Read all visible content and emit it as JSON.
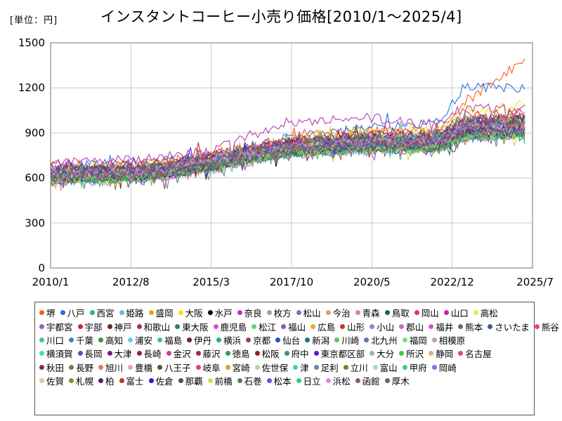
{
  "header": {
    "unit": "[単位：円]",
    "title": "インスタントコーヒー小売り価格[2010/1～2025/4]"
  },
  "chart_data": {
    "type": "line",
    "title": "インスタントコーヒー小売り価格[2010/1～2025/4]",
    "unit_label": "[単位：円]",
    "ylim": [
      0,
      1500
    ],
    "yticks": [
      "0",
      "300",
      "600",
      "900",
      "1200",
      "1500"
    ],
    "xticks": [
      "2010/1",
      "2012/8",
      "2015/3",
      "2017/10",
      "2020/5",
      "2022/12",
      "2025/7"
    ],
    "xrange": [
      "2010/1",
      "2025/7"
    ],
    "grid": true,
    "legend_position": "bottom",
    "series": [
      {
        "name": "堺",
        "color": "#ff5722",
        "levels": [
          700,
          690,
          760,
          860,
          920,
          900,
          1110,
          1380
        ]
      },
      {
        "name": "八戸",
        "color": "#1e6fe8",
        "levels": [
          680,
          700,
          740,
          870,
          930,
          980,
          1210,
          1200
        ]
      },
      {
        "name": "西宮",
        "color": "#2db38a",
        "levels": [
          650,
          640,
          720,
          830,
          860,
          880,
          990,
          1010
        ]
      },
      {
        "name": "姫路",
        "color": "#5bbfdf",
        "levels": [
          640,
          660,
          720,
          820,
          880,
          900,
          1000,
          980
        ]
      },
      {
        "name": "盛岡",
        "color": "#f0a500",
        "levels": [
          620,
          650,
          700,
          800,
          850,
          870,
          960,
          990
        ]
      },
      {
        "name": "大阪",
        "color": "#f2e600",
        "levels": [
          660,
          680,
          750,
          860,
          900,
          920,
          1050,
          1080
        ]
      },
      {
        "name": "水戸",
        "color": "#000000",
        "levels": [
          580,
          610,
          680,
          780,
          830,
          830,
          900,
          1000
        ]
      },
      {
        "name": "奈良",
        "color": "#b338b3",
        "levels": [
          700,
          720,
          780,
          980,
          1000,
          950,
          1080,
          1060
        ]
      },
      {
        "name": "枚方",
        "color": "#a0a0a0",
        "levels": [
          600,
          620,
          690,
          790,
          820,
          820,
          920,
          940
        ]
      },
      {
        "name": "松山",
        "color": "#8a6ad0",
        "levels": [
          620,
          630,
          690,
          780,
          820,
          810,
          900,
          900
        ]
      },
      {
        "name": "今治",
        "color": "#d9a066",
        "levels": [
          640,
          650,
          710,
          820,
          850,
          860,
          960,
          950
        ]
      },
      {
        "name": "青森",
        "color": "#e67ac0",
        "levels": [
          610,
          640,
          720,
          830,
          840,
          850,
          940,
          920
        ]
      },
      {
        "name": "鳥取",
        "color": "#1a6b3a",
        "levels": [
          600,
          610,
          680,
          770,
          800,
          800,
          880,
          900
        ]
      },
      {
        "name": "岡山",
        "color": "#d63b5e",
        "levels": [
          650,
          660,
          730,
          840,
          880,
          890,
          980,
          1000
        ]
      },
      {
        "name": "山口",
        "color": "#cc22aa",
        "levels": [
          620,
          650,
          700,
          800,
          820,
          830,
          920,
          930
        ]
      },
      {
        "name": "高松",
        "color": "#e0ef3a",
        "levels": [
          640,
          660,
          720,
          830,
          860,
          870,
          960,
          970
        ]
      },
      {
        "name": "宇都宮",
        "color": "#9b59d0",
        "levels": [
          580,
          600,
          670,
          760,
          790,
          790,
          870,
          880
        ]
      },
      {
        "name": "宇部",
        "color": "#d6262f",
        "levels": [
          660,
          680,
          750,
          850,
          890,
          900,
          1010,
          1030
        ]
      },
      {
        "name": "神戸",
        "color": "#5a2a1a",
        "levels": [
          620,
          630,
          700,
          800,
          830,
          840,
          930,
          950
        ]
      },
      {
        "name": "和歌山",
        "color": "#b5246a",
        "levels": [
          630,
          650,
          710,
          810,
          840,
          850,
          940,
          960
        ]
      },
      {
        "name": "東大阪",
        "color": "#3a7a6a",
        "levels": [
          610,
          620,
          690,
          790,
          810,
          820,
          900,
          920
        ]
      },
      {
        "name": "鹿児島",
        "color": "#d44ee0",
        "levels": [
          600,
          630,
          700,
          790,
          820,
          830,
          910,
          930
        ]
      },
      {
        "name": "松江",
        "color": "#5ad67a",
        "levels": [
          640,
          650,
          700,
          800,
          840,
          850,
          950,
          960
        ]
      },
      {
        "name": "福山",
        "color": "#8e5ab5",
        "levels": [
          620,
          640,
          700,
          790,
          830,
          840,
          920,
          940
        ]
      },
      {
        "name": "広島",
        "color": "#f5a030",
        "levels": [
          650,
          660,
          730,
          830,
          870,
          880,
          980,
          990
        ]
      },
      {
        "name": "山形",
        "color": "#c0392b",
        "levels": [
          590,
          610,
          680,
          780,
          800,
          810,
          890,
          910
        ]
      },
      {
        "name": "小山",
        "color": "#7d8de8",
        "levels": [
          570,
          590,
          660,
          760,
          790,
          790,
          870,
          890
        ]
      },
      {
        "name": "郡山",
        "color": "#c070c0",
        "levels": [
          600,
          610,
          680,
          780,
          810,
          810,
          900,
          910
        ]
      },
      {
        "name": "福井",
        "color": "#e050c8",
        "levels": [
          620,
          640,
          700,
          800,
          830,
          840,
          930,
          940
        ]
      },
      {
        "name": "熊本",
        "color": "#606a80",
        "levels": [
          610,
          620,
          690,
          790,
          820,
          830,
          910,
          930
        ]
      },
      {
        "name": "さいたま",
        "color": "#3a5a8a",
        "levels": [
          590,
          600,
          670,
          770,
          800,
          800,
          880,
          900
        ]
      },
      {
        "name": "熊谷",
        "color": "#e8408a",
        "levels": [
          580,
          600,
          660,
          760,
          790,
          790,
          870,
          890
        ]
      },
      {
        "name": "川口",
        "color": "#40c0a0",
        "levels": [
          600,
          610,
          680,
          780,
          800,
          810,
          890,
          900
        ]
      },
      {
        "name": "千葉",
        "color": "#3f7fc0",
        "levels": [
          610,
          620,
          690,
          790,
          820,
          820,
          900,
          920
        ]
      },
      {
        "name": "高知",
        "color": "#2aa02a",
        "levels": [
          630,
          640,
          710,
          810,
          840,
          840,
          930,
          950
        ]
      },
      {
        "name": "浦安",
        "color": "#5ad0e0",
        "levels": [
          650,
          660,
          720,
          820,
          850,
          860,
          950,
          960
        ]
      },
      {
        "name": "福島",
        "color": "#50c070",
        "levels": [
          600,
          620,
          680,
          780,
          810,
          820,
          900,
          920
        ]
      },
      {
        "name": "伊丹",
        "color": "#7a1a2a",
        "levels": [
          640,
          650,
          720,
          820,
          850,
          860,
          950,
          960
        ]
      },
      {
        "name": "横浜",
        "color": "#2ab06a",
        "levels": [
          630,
          640,
          700,
          800,
          840,
          850,
          940,
          950
        ]
      },
      {
        "name": "京都",
        "color": "#a04050",
        "levels": [
          660,
          680,
          740,
          840,
          880,
          890,
          990,
          1000
        ]
      },
      {
        "name": "仙台",
        "color": "#2a50c0",
        "levels": [
          620,
          630,
          690,
          790,
          830,
          840,
          920,
          940
        ]
      },
      {
        "name": "新潟",
        "color": "#0f7a6a",
        "levels": [
          600,
          610,
          670,
          770,
          800,
          810,
          890,
          900
        ]
      },
      {
        "name": "川崎",
        "color": "#60c060",
        "levels": [
          620,
          630,
          700,
          800,
          830,
          840,
          920,
          940
        ]
      },
      {
        "name": "北九州",
        "color": "#5a7aa0",
        "levels": [
          610,
          620,
          690,
          780,
          810,
          820,
          900,
          910
        ]
      },
      {
        "name": "福岡",
        "color": "#70e070",
        "levels": [
          630,
          640,
          700,
          800,
          830,
          840,
          930,
          940
        ]
      },
      {
        "name": "相模原",
        "color": "#c0a0a0",
        "levels": [
          600,
          620,
          680,
          780,
          810,
          810,
          900,
          910
        ]
      },
      {
        "name": "横須賀",
        "color": "#40e0b0",
        "levels": [
          620,
          630,
          690,
          790,
          820,
          830,
          910,
          930
        ]
      },
      {
        "name": "長岡",
        "color": "#4a5ab0",
        "levels": [
          590,
          600,
          670,
          770,
          790,
          800,
          880,
          890
        ]
      },
      {
        "name": "大津",
        "color": "#7a1a8a",
        "levels": [
          640,
          650,
          720,
          820,
          850,
          860,
          950,
          960
        ]
      },
      {
        "name": "長崎",
        "color": "#9a1a3a",
        "levels": [
          620,
          640,
          700,
          800,
          830,
          840,
          920,
          940
        ]
      },
      {
        "name": "金沢",
        "color": "#d03a9a",
        "levels": [
          630,
          640,
          710,
          810,
          840,
          850,
          930,
          950
        ]
      },
      {
        "name": "藤沢",
        "color": "#b02050",
        "levels": [
          610,
          630,
          690,
          790,
          820,
          830,
          910,
          930
        ]
      },
      {
        "name": "徳島",
        "color": "#2aa050",
        "levels": [
          640,
          650,
          720,
          820,
          850,
          860,
          950,
          960
        ]
      },
      {
        "name": "松阪",
        "color": "#a01a2a",
        "levels": [
          620,
          630,
          700,
          800,
          830,
          840,
          920,
          930
        ]
      },
      {
        "name": "府中",
        "color": "#4a8a7a",
        "levels": [
          600,
          610,
          680,
          780,
          810,
          810,
          890,
          910
        ]
      },
      {
        "name": "東京都区部",
        "color": "#5a1ae0",
        "levels": [
          650,
          660,
          730,
          830,
          870,
          880,
          970,
          990
        ]
      },
      {
        "name": "大分",
        "color": "#a0b0b0",
        "levels": [
          610,
          620,
          690,
          790,
          820,
          830,
          910,
          920
        ]
      },
      {
        "name": "所沢",
        "color": "#3ad03a",
        "levels": [
          590,
          610,
          670,
          770,
          800,
          800,
          880,
          900
        ]
      },
      {
        "name": "静岡",
        "color": "#e0b080",
        "levels": [
          630,
          640,
          700,
          800,
          840,
          850,
          930,
          950
        ]
      },
      {
        "name": "名古屋",
        "color": "#d84a7a",
        "levels": [
          640,
          650,
          720,
          820,
          850,
          860,
          950,
          960
        ]
      },
      {
        "name": "秋田",
        "color": "#8a2a4a",
        "levels": [
          600,
          610,
          680,
          780,
          810,
          820,
          900,
          910
        ]
      },
      {
        "name": "長野",
        "color": "#6a8a2a",
        "levels": [
          610,
          620,
          690,
          790,
          820,
          820,
          900,
          920
        ]
      },
      {
        "name": "旭川",
        "color": "#f07070",
        "levels": [
          630,
          640,
          710,
          810,
          840,
          850,
          930,
          950
        ]
      },
      {
        "name": "豊橋",
        "color": "#f0a0c0",
        "levels": [
          620,
          630,
          700,
          800,
          830,
          840,
          920,
          930
        ]
      },
      {
        "name": "八王子",
        "color": "#4a5a2a",
        "levels": [
          600,
          620,
          680,
          780,
          810,
          810,
          890,
          910
        ]
      },
      {
        "name": "岐阜",
        "color": "#e03a9a",
        "levels": [
          630,
          640,
          710,
          810,
          840,
          850,
          930,
          940
        ]
      },
      {
        "name": "宮崎",
        "color": "#d0a040",
        "levels": [
          610,
          620,
          690,
          790,
          820,
          830,
          910,
          920
        ]
      },
      {
        "name": "佐世保",
        "color": "#c0d0a0",
        "levels": [
          620,
          630,
          700,
          800,
          830,
          840,
          920,
          930
        ]
      },
      {
        "name": "津",
        "color": "#3ad0c0",
        "levels": [
          640,
          650,
          720,
          820,
          850,
          860,
          940,
          960
        ]
      },
      {
        "name": "足利",
        "color": "#5a8ab0",
        "levels": [
          590,
          600,
          670,
          770,
          790,
          800,
          880,
          890
        ]
      },
      {
        "name": "立川",
        "color": "#8a7a1a",
        "levels": [
          610,
          620,
          690,
          790,
          820,
          820,
          900,
          920
        ]
      },
      {
        "name": "富山",
        "color": "#a0e0b0",
        "levels": [
          620,
          630,
          700,
          800,
          830,
          840,
          920,
          930
        ]
      },
      {
        "name": "甲府",
        "color": "#40d070",
        "levels": [
          600,
          610,
          680,
          780,
          810,
          810,
          890,
          900
        ]
      },
      {
        "name": "岡崎",
        "color": "#7a7ae0",
        "levels": [
          630,
          640,
          710,
          810,
          840,
          850,
          930,
          940
        ]
      },
      {
        "name": "佐賀",
        "color": "#d0d0a0",
        "levels": [
          610,
          620,
          690,
          790,
          820,
          820,
          900,
          910
        ]
      },
      {
        "name": "札幌",
        "color": "#8a8a3a",
        "levels": [
          620,
          630,
          700,
          800,
          830,
          840,
          920,
          940
        ]
      },
      {
        "name": "柏",
        "color": "#5a1a6a",
        "levels": [
          600,
          610,
          680,
          780,
          810,
          820,
          900,
          910
        ]
      },
      {
        "name": "富士",
        "color": "#b03a1a",
        "levels": [
          630,
          640,
          710,
          810,
          840,
          850,
          930,
          950
        ]
      },
      {
        "name": "佐倉",
        "color": "#2a1ad0",
        "levels": [
          610,
          620,
          690,
          790,
          820,
          830,
          910,
          920
        ]
      },
      {
        "name": "那覇",
        "color": "#3a5a6a",
        "levels": [
          640,
          660,
          730,
          830,
          870,
          880,
          980,
          990
        ]
      },
      {
        "name": "前橋",
        "color": "#d0e040",
        "levels": [
          590,
          600,
          670,
          770,
          790,
          800,
          880,
          890
        ]
      },
      {
        "name": "石巻",
        "color": "#5a7a5a",
        "levels": [
          600,
          610,
          680,
          780,
          810,
          810,
          890,
          900
        ]
      },
      {
        "name": "松本",
        "color": "#5a5ae0",
        "levels": [
          620,
          630,
          700,
          800,
          830,
          840,
          920,
          930
        ]
      },
      {
        "name": "日立",
        "color": "#2ad070",
        "levels": [
          590,
          600,
          670,
          770,
          800,
          800,
          880,
          890
        ]
      },
      {
        "name": "浜松",
        "color": "#f080d0",
        "levels": [
          620,
          630,
          700,
          800,
          830,
          840,
          920,
          930
        ]
      },
      {
        "name": "函館",
        "color": "#8a5a6a",
        "levels": [
          610,
          620,
          690,
          790,
          820,
          830,
          910,
          920
        ]
      },
      {
        "name": "厚木",
        "color": "#5a6a6a",
        "levels": [
          600,
          610,
          680,
          780,
          810,
          810,
          890,
          900
        ]
      }
    ]
  }
}
